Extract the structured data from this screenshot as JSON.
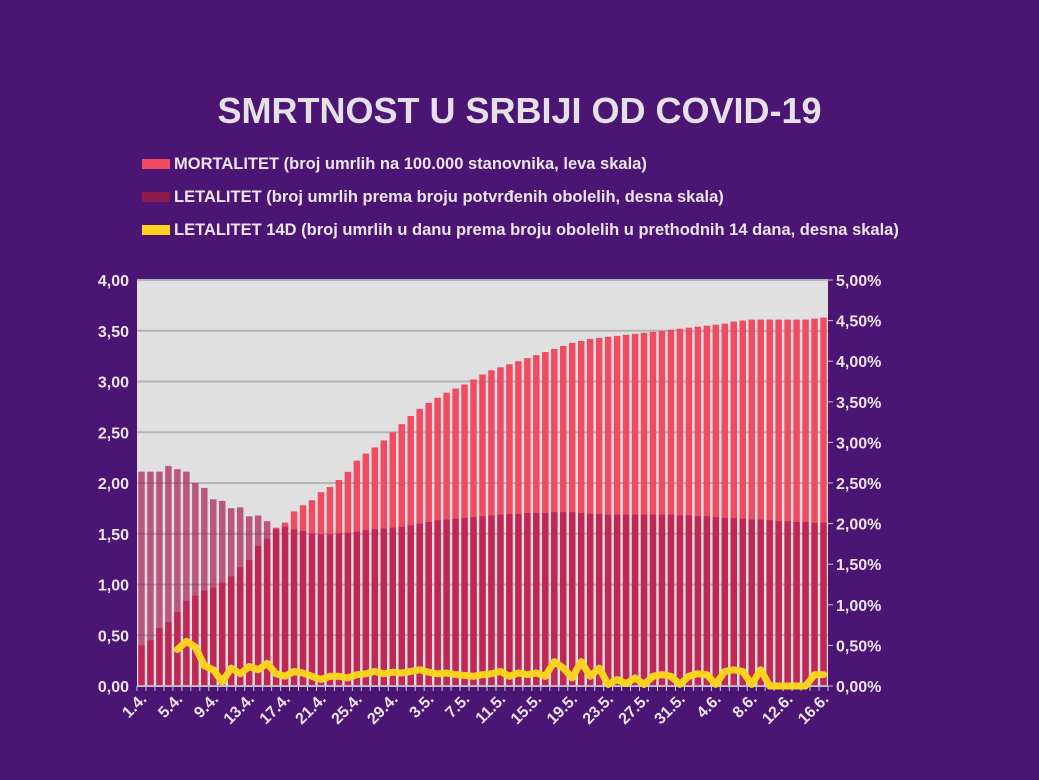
{
  "chart_data": {
    "type": "bar",
    "title": "SMRTNOST U SRBIJI OD COVID-19",
    "colors": {
      "background": "#4b1573",
      "plot_background": "#e0e0e0",
      "mortalitet": "#f04b63",
      "letalitet": "#a8164f",
      "letalitet_14d": "#fdd320"
    },
    "legend_placement": "top",
    "grid": true,
    "left_axis": {
      "range": [
        0,
        4
      ],
      "ticks": [
        "0,00",
        "0,50",
        "1,00",
        "1,50",
        "2,00",
        "2,50",
        "3,00",
        "3,50",
        "4,00"
      ]
    },
    "right_axis": {
      "range": [
        0,
        5
      ],
      "unit": "%",
      "ticks": [
        "0,00%",
        "0,50%",
        "1,00%",
        "1,50%",
        "2,00%",
        "2,50%",
        "3,00%",
        "3,50%",
        "4,00%",
        "4,50%",
        "5,00%"
      ]
    },
    "x_tick_labels": [
      "1.4.",
      "5.4.",
      "9.4.",
      "13.4.",
      "17.4.",
      "21.4.",
      "25.4.",
      "29.4.",
      "3.5.",
      "7.5.",
      "11.5.",
      "15.5.",
      "19.5.",
      "23.5.",
      "27.5.",
      "31.5.",
      "4.6.",
      "8.6.",
      "12.6.",
      "16.6."
    ],
    "x_range": [
      "1.4.",
      "16.6."
    ],
    "series": [
      {
        "name": "MORTALITET (broj umrlih na 100.000 stanovnika, leva skala)",
        "type": "bar",
        "axis": "left",
        "values": [
          0.4,
          0.45,
          0.57,
          0.63,
          0.73,
          0.84,
          0.89,
          0.94,
          0.97,
          1.02,
          1.08,
          1.17,
          1.24,
          1.38,
          1.45,
          1.56,
          1.61,
          1.72,
          1.78,
          1.83,
          1.91,
          1.96,
          2.03,
          2.11,
          2.22,
          2.29,
          2.35,
          2.42,
          2.5,
          2.58,
          2.66,
          2.73,
          2.79,
          2.84,
          2.89,
          2.93,
          2.97,
          3.02,
          3.07,
          3.11,
          3.14,
          3.17,
          3.2,
          3.23,
          3.26,
          3.29,
          3.32,
          3.35,
          3.38,
          3.4,
          3.42,
          3.43,
          3.44,
          3.45,
          3.46,
          3.47,
          3.48,
          3.49,
          3.5,
          3.51,
          3.52,
          3.53,
          3.54,
          3.55,
          3.56,
          3.57,
          3.59,
          3.6,
          3.61,
          3.61,
          3.61,
          3.61,
          3.61,
          3.61,
          3.61,
          3.62,
          3.63
        ]
      },
      {
        "name": "LETALITET (broj umrlih prema broju potvrđenih obolelih, desna skala)",
        "type": "bar",
        "axis": "right",
        "values": [
          2.64,
          2.64,
          2.64,
          2.71,
          2.67,
          2.64,
          2.5,
          2.44,
          2.3,
          2.28,
          2.19,
          2.2,
          2.09,
          2.1,
          2.03,
          1.93,
          1.96,
          1.93,
          1.91,
          1.88,
          1.87,
          1.87,
          1.88,
          1.89,
          1.9,
          1.92,
          1.93,
          1.94,
          1.95,
          1.96,
          1.98,
          2.0,
          2.02,
          2.04,
          2.05,
          2.06,
          2.07,
          2.08,
          2.09,
          2.1,
          2.11,
          2.12,
          2.12,
          2.13,
          2.13,
          2.13,
          2.14,
          2.14,
          2.14,
          2.13,
          2.12,
          2.12,
          2.11,
          2.11,
          2.11,
          2.11,
          2.11,
          2.11,
          2.11,
          2.11,
          2.1,
          2.1,
          2.09,
          2.09,
          2.08,
          2.07,
          2.07,
          2.06,
          2.05,
          2.05,
          2.04,
          2.03,
          2.03,
          2.02,
          2.02,
          2.01,
          2.01
        ]
      },
      {
        "name": "LETALITET 14D (broj umrlih u danu prema broju obolelih u prethodnih 14 dana, desna skala)",
        "type": "line",
        "axis": "right",
        "start_day": "5.4.",
        "values": [
          0.45,
          0.55,
          0.48,
          0.25,
          0.2,
          0.05,
          0.22,
          0.15,
          0.24,
          0.2,
          0.28,
          0.15,
          0.12,
          0.18,
          0.16,
          0.12,
          0.08,
          0.12,
          0.12,
          0.1,
          0.14,
          0.15,
          0.18,
          0.15,
          0.17,
          0.16,
          0.18,
          0.2,
          0.17,
          0.15,
          0.16,
          0.14,
          0.13,
          0.12,
          0.14,
          0.15,
          0.18,
          0.12,
          0.16,
          0.14,
          0.16,
          0.12,
          0.3,
          0.22,
          0.1,
          0.3,
          0.12,
          0.22,
          0.02,
          0.08,
          0.03,
          0.1,
          0.02,
          0.12,
          0.14,
          0.12,
          0.02,
          0.12,
          0.15,
          0.14,
          0.02,
          0.18,
          0.2,
          0.18,
          0.02,
          0.2,
          0.0,
          0.0,
          0.0,
          0.0,
          0.0,
          0.14,
          0.14
        ]
      }
    ],
    "legend": [
      "MORTALITET (broj umrlih na 100.000 stanovnika, leva skala)",
      "LETALITET (broj umrlih prema broju potvrđenih obolelih, desna skala)",
      "LETALITET 14D (broj umrlih u danu prema broju obolelih u prethodnih 14 dana, desna skala)"
    ]
  }
}
